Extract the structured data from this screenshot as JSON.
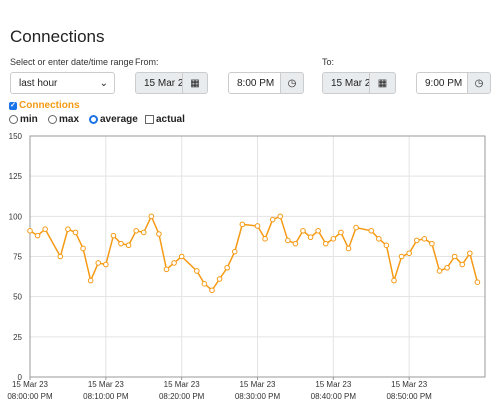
{
  "header": {
    "title": "Connections"
  },
  "form": {
    "range_label": "Select or enter date/time range",
    "range_value": "last hour",
    "from_label": "From:",
    "from_date": "15 Mar 2",
    "from_time": "8:00 PM",
    "to_label": "To:",
    "to_date": "15 Mar 2",
    "to_time": "9:00 PM"
  },
  "options": {
    "modes": [
      "min",
      "max",
      "average"
    ],
    "selected_mode": "average",
    "actual": "actual"
  },
  "chart_data": {
    "type": "line",
    "x": [
      "20:00:00",
      "20:01:00",
      "20:02:00",
      "20:04:00",
      "20:05:00",
      "20:06:00",
      "20:07:00",
      "20:08:00",
      "20:09:00",
      "20:10:00",
      "20:11:00",
      "20:12:00",
      "20:13:00",
      "20:14:00",
      "20:15:00",
      "20:16:00",
      "20:17:00",
      "20:18:00",
      "20:19:00",
      "20:20:00",
      "20:22:00",
      "20:23:00",
      "20:24:00",
      "20:25:00",
      "20:26:00",
      "20:27:00",
      "20:28:00",
      "20:30:00",
      "20:31:00",
      "20:32:00",
      "20:33:00",
      "20:34:00",
      "20:35:00",
      "20:36:00",
      "20:37:00",
      "20:38:00",
      "20:39:00",
      "20:40:00",
      "20:41:00",
      "20:42:00",
      "20:43:00",
      "20:45:00",
      "20:46:00",
      "20:47:00",
      "20:48:00",
      "20:49:00",
      "20:50:00",
      "20:51:00",
      "20:52:00",
      "20:53:00",
      "20:54:00",
      "20:55:00",
      "20:56:00",
      "20:57:00",
      "20:58:00",
      "20:59:00"
    ],
    "series": [
      {
        "name": "Connections",
        "color": "#f59a14",
        "values": [
          91,
          88,
          92,
          75,
          92,
          90,
          80,
          60,
          71,
          70,
          88,
          83,
          82,
          91,
          90,
          100,
          89,
          67,
          71,
          75,
          66,
          58,
          54,
          61,
          68,
          78,
          95,
          94,
          86,
          98,
          100,
          85,
          83,
          91,
          87,
          91,
          83,
          86,
          90,
          80,
          93,
          91,
          86,
          82,
          60,
          75,
          77,
          85,
          86,
          83,
          66,
          68,
          75,
          70,
          77,
          59
        ]
      }
    ],
    "xlim": [
      "20:00:00",
      "21:00:00"
    ],
    "xticks": [
      {
        "value": "20:00:00",
        "label": [
          "15 Mar 23",
          "08:00:00 PM"
        ]
      },
      {
        "value": "20:10:00",
        "label": [
          "15 Mar 23",
          "08:10:00 PM"
        ]
      },
      {
        "value": "20:20:00",
        "label": [
          "15 Mar 23",
          "08:20:00 PM"
        ]
      },
      {
        "value": "20:30:00",
        "label": [
          "15 Mar 23",
          "08:30:00 PM"
        ]
      },
      {
        "value": "20:40:00",
        "label": [
          "15 Mar 23",
          "08:40:00 PM"
        ]
      },
      {
        "value": "20:50:00",
        "label": [
          "15 Mar 23",
          "08:50:00 PM"
        ]
      }
    ],
    "ylim": [
      0,
      150
    ],
    "yticks": [
      0,
      25,
      50,
      75,
      100,
      125,
      150
    ],
    "grid": true
  }
}
